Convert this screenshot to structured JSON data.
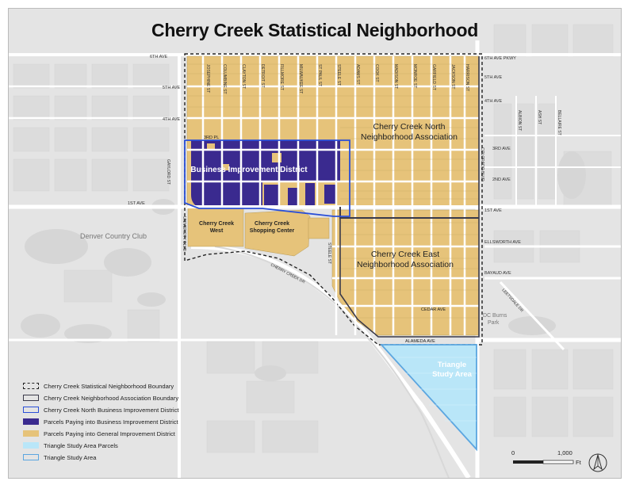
{
  "title": "Cherry Creek Statistical Neighborhood",
  "streets": {
    "ave_left": [
      "6TH AVE",
      "5TH AVE",
      "4TH AVE",
      "1ST AVE"
    ],
    "ave_right": [
      "6TH AVE PKWY",
      "5TH AVE",
      "4TH AVE",
      "3RD AVE",
      "2ND AVE",
      "1ST AVE",
      "ELLSWORTH AVE",
      "BAYAUD AVE"
    ],
    "north_streets": [
      "JOSEPHINE ST",
      "COLUMBINE ST",
      "CLAYTON ST",
      "DETROIT ST",
      "FILLMORE ST",
      "MILWAUKEE ST",
      "ST PAUL ST",
      "STEELE ST",
      "ADAMS ST",
      "COOK ST",
      "MADISON ST",
      "MONROE ST",
      "GARFIELD ST",
      "JACKSON ST",
      "HARRISON ST"
    ],
    "east_streets": [
      "ALBION ST",
      "ASH ST",
      "BELLAIRE ST"
    ],
    "other": {
      "third_pl": "3RD PL",
      "gaylord": "GAYLORD ST",
      "university": "UNIVERSITY BLVD",
      "colorado": "COLORADO BLVD",
      "steele_south": "STEELE ST",
      "cherry_creek_dr": "CHERRY CREEK DR",
      "cedar": "CEDAR AVE",
      "alameda": "ALAMEDA AVE",
      "leetsdale": "LEETSDALE DR"
    }
  },
  "places": {
    "country_club": "Denver Country Club",
    "dc_burns": "DC Burns",
    "dc_burns_2": "Park"
  },
  "areas": {
    "north_line1": "Cherry Creek North",
    "north_line2": "Neighborhood Association",
    "east_line1": "Cherry Creek East",
    "east_line2": "Neighborhood Association",
    "bid": "Business Improvement District",
    "west_line1": "Cherry Creek",
    "west_line2": "West",
    "mall_line1": "Cherry Creek",
    "mall_line2": "Shopping Center",
    "triangle_line1": "Triangle",
    "triangle_line2": "Study Area"
  },
  "legend": [
    {
      "label": "Cherry Creek Statistical Neighborhood Boundary",
      "kind": "dashed-box"
    },
    {
      "label": "Cherry Creek Neighborhood Association Boundary",
      "kind": "dark-box"
    },
    {
      "label": "Cherry Creek North Business Improvement District",
      "kind": "blue-box"
    },
    {
      "label": "Parcels Paying into Business Improvement District",
      "kind": "purple-fill"
    },
    {
      "label": "Parcels Paying into General Improvement District",
      "kind": "tan-fill"
    },
    {
      "label": "Triangle Study Area Parcels",
      "kind": "lightblue-fill"
    },
    {
      "label": "Triangle Study Area",
      "kind": "lightblue-box"
    }
  ],
  "scale": {
    "left": "0",
    "right": "1,000",
    "unit": "Ft"
  },
  "colors": {
    "tan": "#e6c37a",
    "purple": "#3a2a8f",
    "bid_outline": "#2a4fd8",
    "light_blue": "#b9e6f8",
    "triangle_outline": "#5ba6e0",
    "background": "#e4e4e4"
  },
  "north_arrow_icon": "north-arrow-icon"
}
